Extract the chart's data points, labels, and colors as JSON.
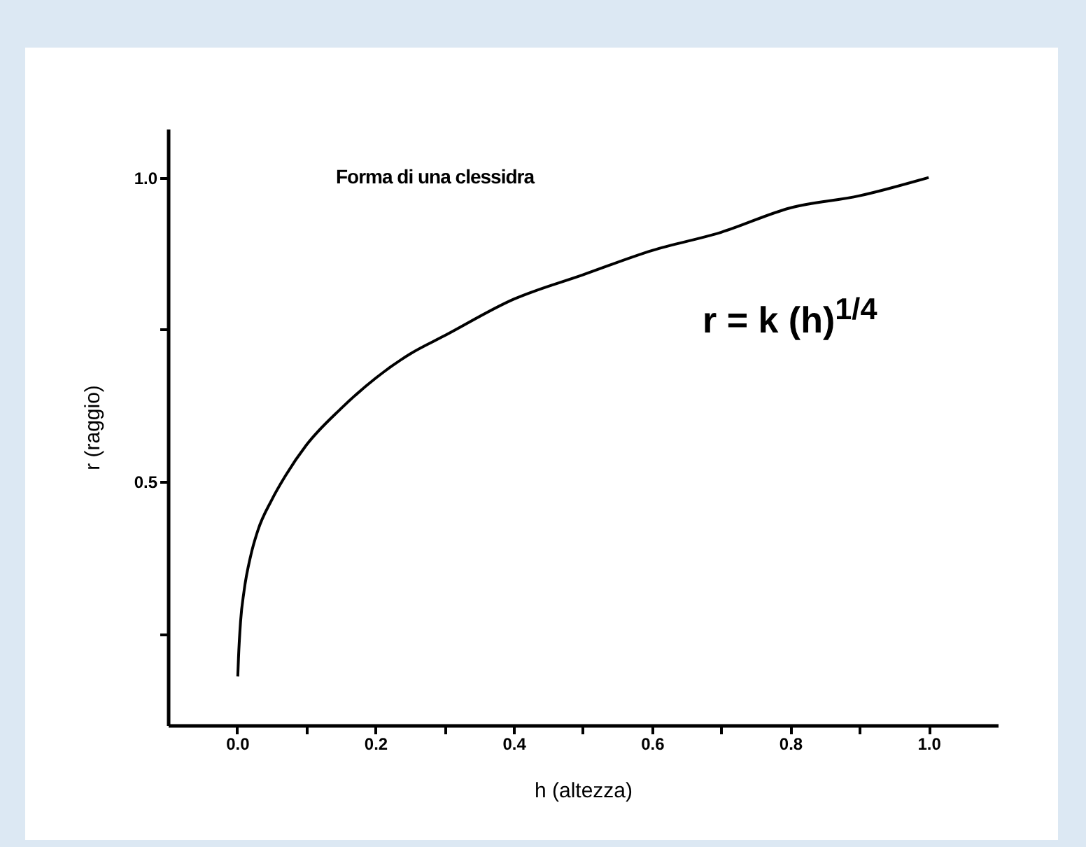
{
  "chart_data": {
    "type": "line",
    "xlabel": "h (altezza)",
    "ylabel": "r (raggio)",
    "annotations": [
      "Forma di una clessidra",
      "r = k (h)$^{1/4}$"
    ],
    "x": [
      0.001,
      0.002,
      0.005,
      0.01,
      0.02,
      0.03,
      0.05,
      0.07,
      0.1,
      0.15,
      0.2,
      0.25,
      0.3,
      0.4,
      0.5,
      0.6,
      0.7,
      0.8,
      0.9,
      1.0
    ],
    "series": [
      {
        "color": "#000000",
        "values": [
          0.18,
          0.21,
          0.27,
          0.32,
          0.38,
          0.42,
          0.47,
          0.51,
          0.56,
          0.62,
          0.67,
          0.71,
          0.74,
          0.8,
          0.84,
          0.88,
          0.91,
          0.95,
          0.97,
          1.0
        ]
      }
    ],
    "xlim": [
      -0.1,
      1.1
    ],
    "xticks": [
      {
        "value": 0,
        "label": "0.0"
      },
      {
        "value": 0.1,
        "label": null
      },
      0.2,
      {
        "value": 0.3,
        "label": null
      },
      0.4,
      {
        "value": 0.5,
        "label": null
      },
      0.6,
      {
        "value": 0.7,
        "label": null
      },
      0.8,
      {
        "value": 0.9,
        "label": null
      },
      {
        "value": 1,
        "label": "1.0"
      }
    ],
    "ylim": [
      0.1,
      1.08
    ],
    "yticks": [
      {
        "value": 0.25,
        "label": null
      },
      {
        "value": 0.5,
        "label": "0.5"
      },
      {
        "value": 0.75,
        "label": null
      },
      {
        "value": 1.0,
        "label": "1.0"
      }
    ],
    "grid": false,
    "marker": "none",
    "line_style": "solid"
  }
}
